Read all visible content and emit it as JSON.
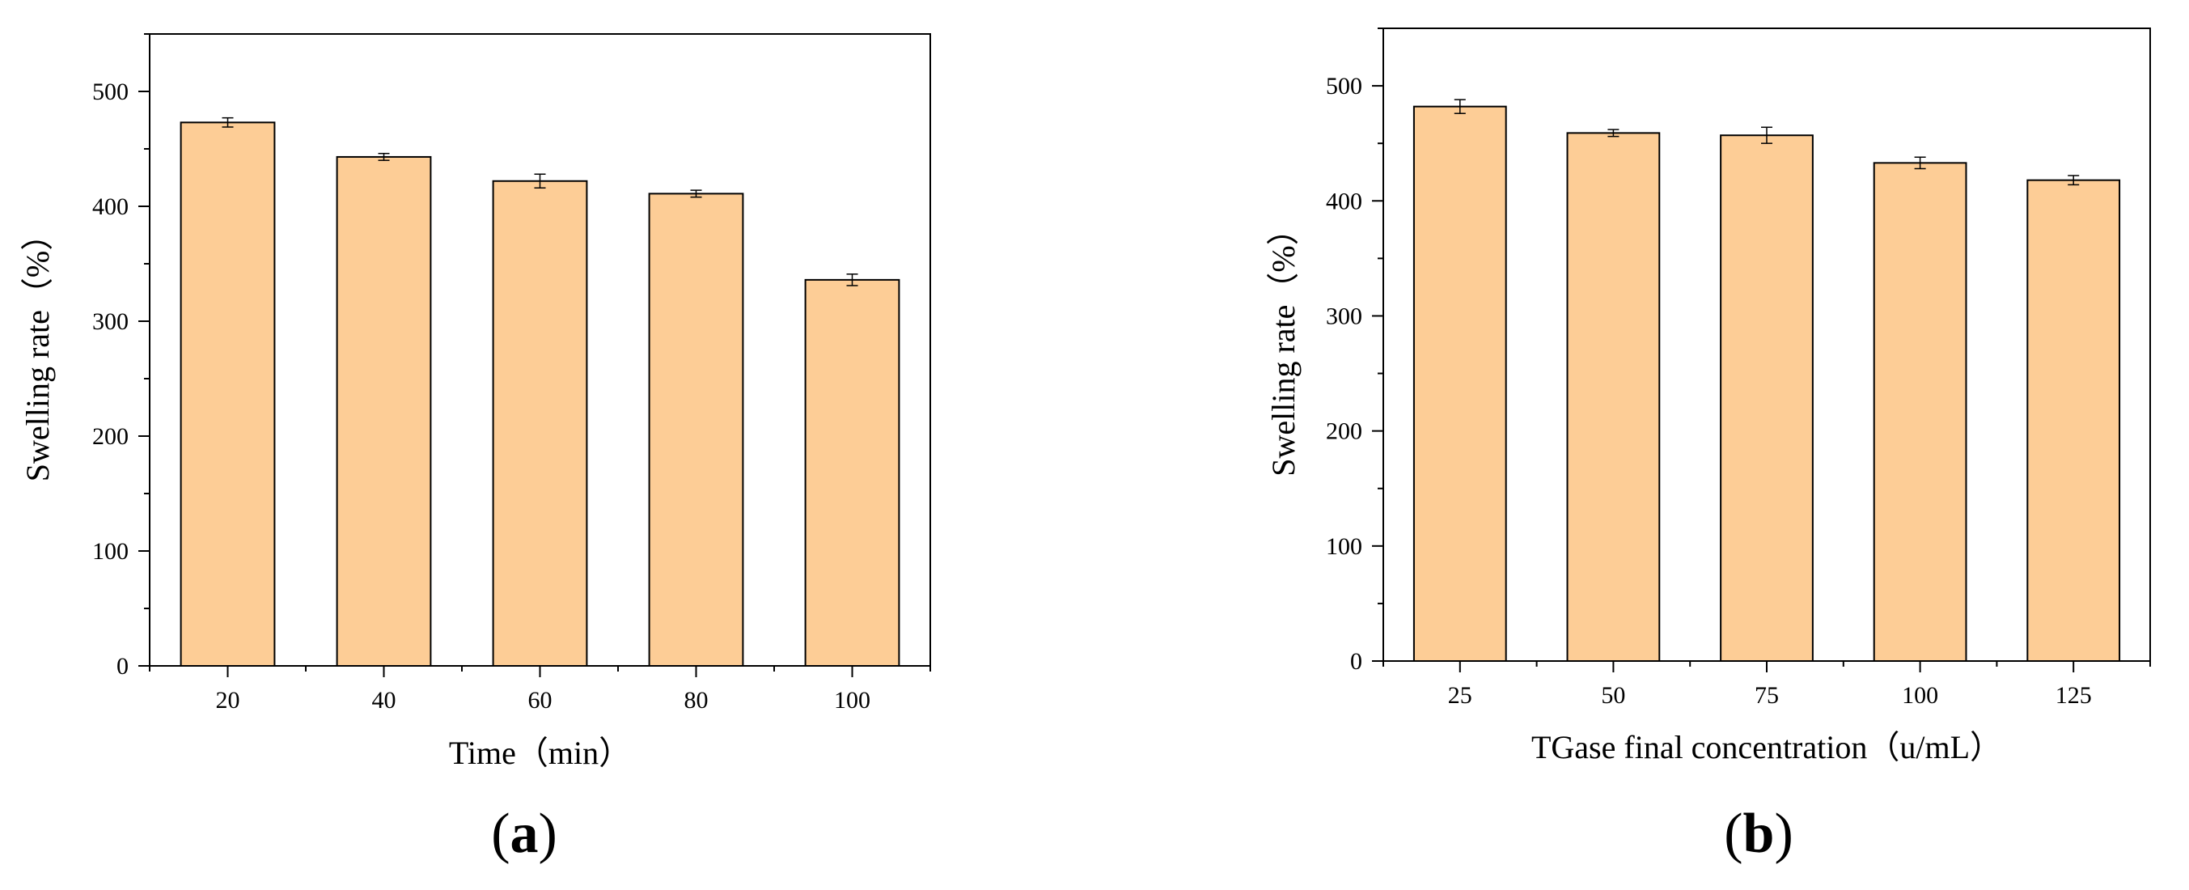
{
  "chart_data": [
    {
      "type": "bar",
      "panel_label": "a",
      "title": "",
      "xlabel": "Time（min）",
      "ylabel": "Swelling rate（%）",
      "categories": [
        "20",
        "40",
        "60",
        "80",
        "100"
      ],
      "values": [
        473,
        443,
        422,
        411,
        336
      ],
      "errors": [
        4,
        3,
        6,
        3,
        5
      ],
      "ylim": [
        0,
        550
      ],
      "yticks": [
        0,
        100,
        200,
        300,
        400,
        500
      ],
      "bar_color": "#fdcd96",
      "edge_color": "#000000",
      "grid": false
    },
    {
      "type": "bar",
      "panel_label": "b",
      "title": "",
      "xlabel": "TGase final concentration（u/mL）",
      "ylabel": "Swelling rate（%）",
      "categories": [
        "25",
        "50",
        "75",
        "100",
        "125"
      ],
      "values": [
        482,
        459,
        457,
        433,
        418
      ],
      "errors": [
        6,
        3,
        7,
        5,
        4
      ],
      "ylim": [
        0,
        550
      ],
      "yticks": [
        0,
        100,
        200,
        300,
        400,
        500
      ],
      "bar_color": "#fdcd96",
      "edge_color": "#000000",
      "grid": false
    }
  ]
}
